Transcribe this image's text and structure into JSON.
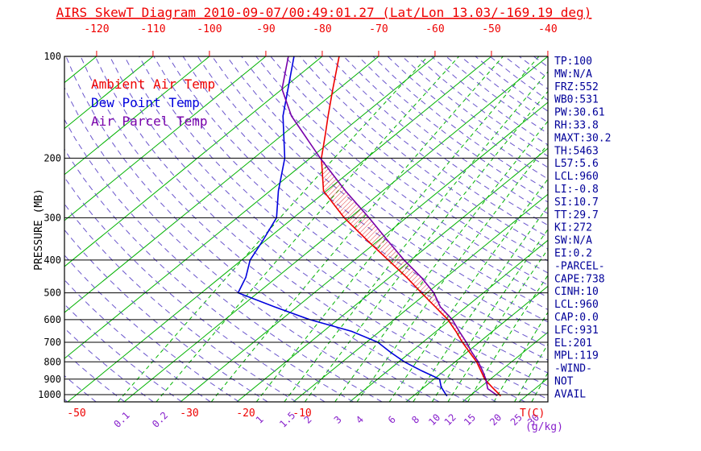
{
  "title": "AIRS SkewT Diagram 2010-09-07/00:49:01.27 (Lat/Lon 13.03/-169.19 deg)",
  "legend": {
    "ambient": "Ambient Air Temp",
    "dew": "Dew Point Temp",
    "parcel": "Air Parcel Temp"
  },
  "axes": {
    "pressure_label": "PRESSURE (MB)",
    "temp_unit": "T(C)",
    "mixing_unit": "(g/kg)"
  },
  "colors": {
    "title": "#ee0000",
    "ambient": "#ee0000",
    "dew_point": "#0000dd",
    "parcel": "#7700aa",
    "isotherm": "#00b200",
    "adiabat": "#6a55cc",
    "mixing_label": "#8822cc",
    "axis": "#000000",
    "stats": "#000099",
    "hatch": "#dd2222"
  },
  "stats_panel": {
    "lines": [
      "TP:100",
      "MW:N/A",
      "FRZ:552",
      "WB0:531",
      "PW:30.61",
      "RH:33.8",
      "MAXT:30.2",
      "TH:5463",
      "L57:5.6",
      "LCL:960",
      "LI:-0.8",
      "SI:10.7",
      "TT:29.7",
      "KI:272",
      "SW:N/A",
      "EI:0.2",
      "-PARCEL-",
      "CAPE:738",
      "CINH:10",
      "LCL:960",
      "CAP:0.0",
      "LFC:931",
      "EL:201",
      "MPL:119",
      "-WIND-",
      "NOT",
      "AVAIL"
    ]
  },
  "chart_data": {
    "type": "line",
    "subtype": "skewt_log_p_sounding",
    "y_axis": {
      "label": "PRESSURE (MB)",
      "scale": "log",
      "range_mb": [
        100,
        1050
      ]
    },
    "x_axis": {
      "label": "T(C)",
      "skewed": true
    },
    "pressure_ticks_mb": [
      100,
      200,
      300,
      400,
      500,
      600,
      700,
      800,
      900,
      1000
    ],
    "top_temp_ticks_c": [
      -120,
      -110,
      -100,
      -90,
      -80,
      -70,
      -60,
      -50,
      -40
    ],
    "bottom_temp_ticks_c": [
      -50,
      -30,
      -20,
      -10
    ],
    "mixing_ratio_ticks_gkg": [
      0.1,
      0.2,
      1,
      1.5,
      2,
      3,
      4,
      6,
      8,
      10,
      12,
      15,
      20,
      25,
      30
    ],
    "mixing_ratio_lines_gkg": [
      0.1,
      0.2,
      0.5,
      1,
      1.5,
      2,
      3,
      4,
      6,
      8,
      10,
      12,
      15,
      20,
      25,
      30
    ],
    "isotherms_c": {
      "min": -130,
      "max": 30,
      "step": 10
    },
    "dry_adiabats_k": {
      "min": 220,
      "max": 455,
      "step": 5
    },
    "series": [
      {
        "name": "Ambient Air Temp",
        "color_key": "ambient",
        "points_mb_c": [
          [
            1010,
            25.5
          ],
          [
            1000,
            25
          ],
          [
            950,
            22
          ],
          [
            900,
            19
          ],
          [
            850,
            16.5
          ],
          [
            800,
            13.8
          ],
          [
            750,
            10.5
          ],
          [
            700,
            7
          ],
          [
            650,
            3.5
          ],
          [
            600,
            -0.5
          ],
          [
            550,
            -5.5
          ],
          [
            500,
            -11
          ],
          [
            450,
            -17
          ],
          [
            400,
            -24
          ],
          [
            350,
            -32
          ],
          [
            300,
            -41
          ],
          [
            250,
            -50.5
          ],
          [
            200,
            -58
          ],
          [
            170,
            -62.5
          ],
          [
            150,
            -66
          ],
          [
            125,
            -71
          ],
          [
            100,
            -77
          ]
        ]
      },
      {
        "name": "Dew Point Temp",
        "color_key": "dew_point",
        "points_mb_c": [
          [
            1010,
            16
          ],
          [
            1000,
            15.5
          ],
          [
            950,
            13
          ],
          [
            900,
            11
          ],
          [
            850,
            6
          ],
          [
            800,
            1
          ],
          [
            750,
            -3.5
          ],
          [
            700,
            -8
          ],
          [
            650,
            -15
          ],
          [
            600,
            -25
          ],
          [
            550,
            -34
          ],
          [
            500,
            -43.5
          ],
          [
            450,
            -45.5
          ],
          [
            400,
            -48.5
          ],
          [
            350,
            -50.5
          ],
          [
            300,
            -53
          ],
          [
            250,
            -58.5
          ],
          [
            200,
            -64.5
          ],
          [
            150,
            -74
          ],
          [
            100,
            -85
          ]
        ]
      },
      {
        "name": "Air Parcel Temp",
        "color_key": "parcel",
        "points_mb_c": [
          [
            1010,
            24.8
          ],
          [
            1000,
            24.4
          ],
          [
            960,
            21.6
          ],
          [
            900,
            19.2
          ],
          [
            850,
            16.8
          ],
          [
            800,
            14.1
          ],
          [
            750,
            10.9
          ],
          [
            700,
            7.7
          ],
          [
            650,
            4.1
          ],
          [
            600,
            0.3
          ],
          [
            550,
            -4.6
          ],
          [
            500,
            -8.8
          ],
          [
            450,
            -14.4
          ],
          [
            400,
            -21.2
          ],
          [
            350,
            -28.4
          ],
          [
            300,
            -36.6
          ],
          [
            250,
            -46.6
          ],
          [
            200,
            -58.2
          ],
          [
            150,
            -72.5
          ],
          [
            125,
            -80
          ],
          [
            100,
            -86
          ]
        ]
      }
    ],
    "cape_hatch": {
      "between": [
        "Air Parcel Temp",
        "Ambient Air Temp"
      ],
      "p_bottom_mb": 931,
      "p_top_mb": 201
    }
  }
}
